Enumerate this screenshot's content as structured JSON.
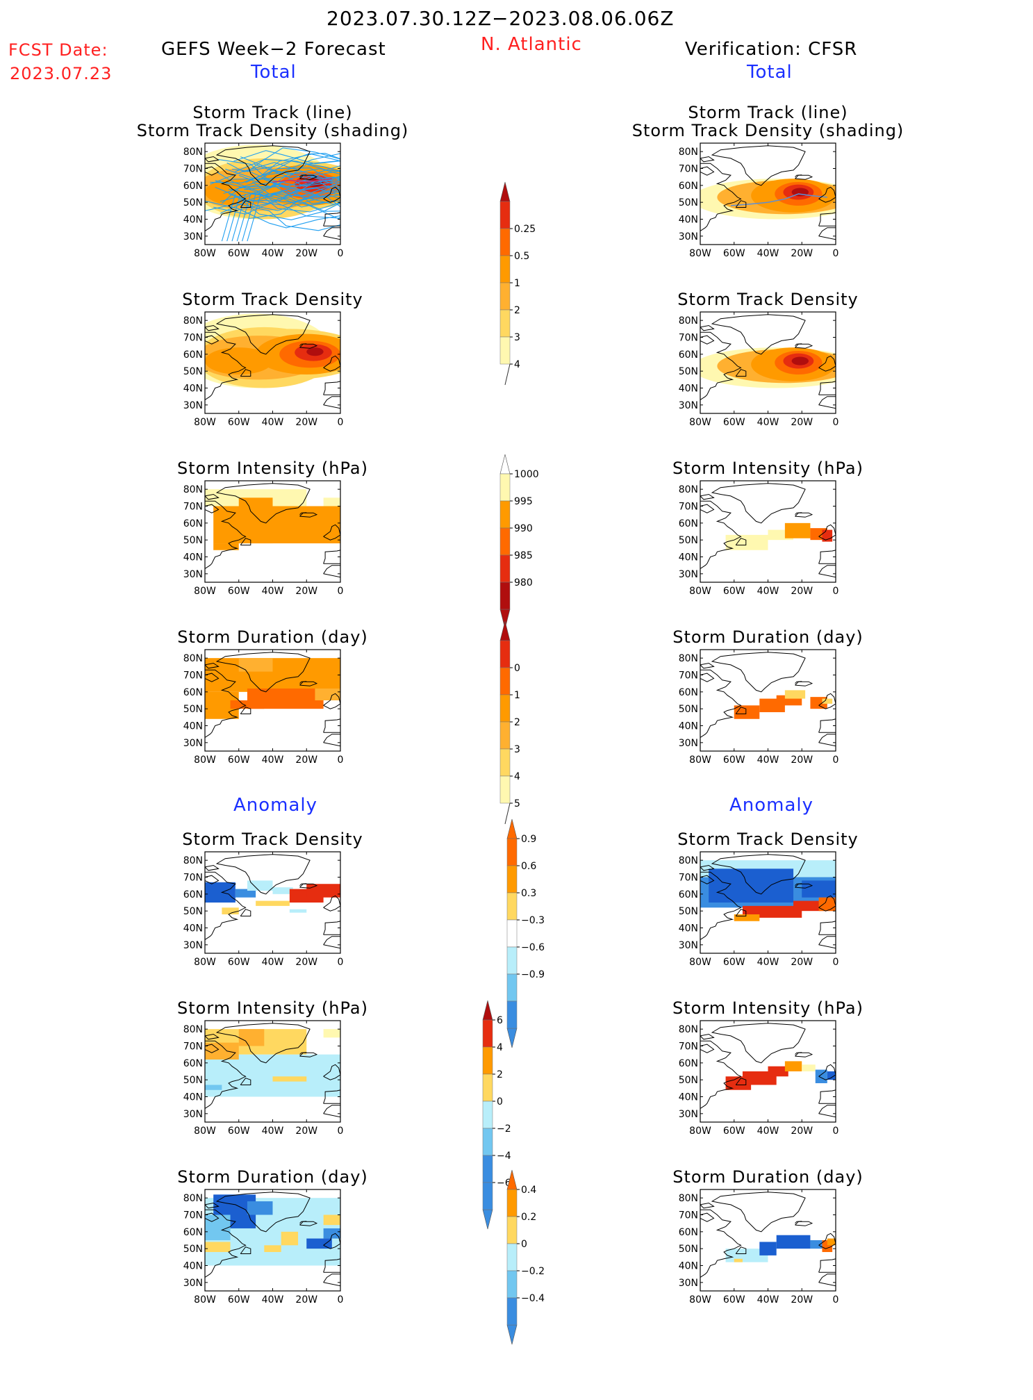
{
  "header": {
    "date_range": "2023.07.30.12Z−2023.08.06.06Z",
    "fcst_label": "FCST Date:",
    "fcst_date": "2023.07.23",
    "left_model": "GEFS Week−2 Forecast",
    "region": "N. Atlantic",
    "right_model": "Verification: CFSR"
  },
  "sections": {
    "total": "Total",
    "anomaly": "Anomaly"
  },
  "panel_titles": {
    "track_line": "Storm Track (line)",
    "track_shading": "Storm Track Density (shading)",
    "density": "Storm Track Density",
    "intensity": "Storm Intensity (hPa)",
    "duration": "Storm Duration (day)"
  },
  "map_axes": {
    "lat_ticks": [
      "80N",
      "70N",
      "60N",
      "50N",
      "40N",
      "30N"
    ],
    "lon_ticks": [
      "80W",
      "60W",
      "40W",
      "20W",
      "0"
    ]
  },
  "colors": {
    "yellow_light": "#fff8b0",
    "yellow": "#ffd860",
    "orange_light": "#ffb030",
    "orange": "#ff9a00",
    "orange_dark": "#ff6a00",
    "red": "#e62d10",
    "dark_red": "#b00e0e",
    "blue_light": "#b8eefa",
    "blue_mid": "#72c7f0",
    "blue": "#3a8de0",
    "blue_dark": "#1b5fd0",
    "track_blue": "#1e9ef0"
  },
  "chart_data": [
    {
      "type": "heatmap",
      "name_hint": "colorbar-density",
      "levels": [
        "0.25",
        "0.5",
        "1",
        "2",
        "3",
        "4"
      ]
    },
    {
      "type": "heatmap",
      "name_hint": "colorbar-intensity",
      "levels": [
        "1000",
        "995",
        "990",
        "985",
        "980"
      ]
    },
    {
      "type": "heatmap",
      "name_hint": "colorbar-duration",
      "levels": [
        "0",
        "1",
        "2",
        "3",
        "4",
        "5"
      ]
    },
    {
      "type": "heatmap",
      "name_hint": "colorbar-density-anomaly",
      "levels": [
        "0.9",
        "0.6",
        "0.3",
        "−0.3",
        "−0.6",
        "−0.9"
      ]
    },
    {
      "type": "heatmap",
      "name_hint": "colorbar-intensity-anomaly",
      "levels": [
        "6",
        "4",
        "2",
        "0",
        "−2",
        "−4",
        "−6"
      ]
    },
    {
      "type": "heatmap",
      "name_hint": "colorbar-duration-anomaly",
      "levels": [
        "0.4",
        "0.2",
        "0",
        "−0.2",
        "−0.4"
      ]
    }
  ]
}
